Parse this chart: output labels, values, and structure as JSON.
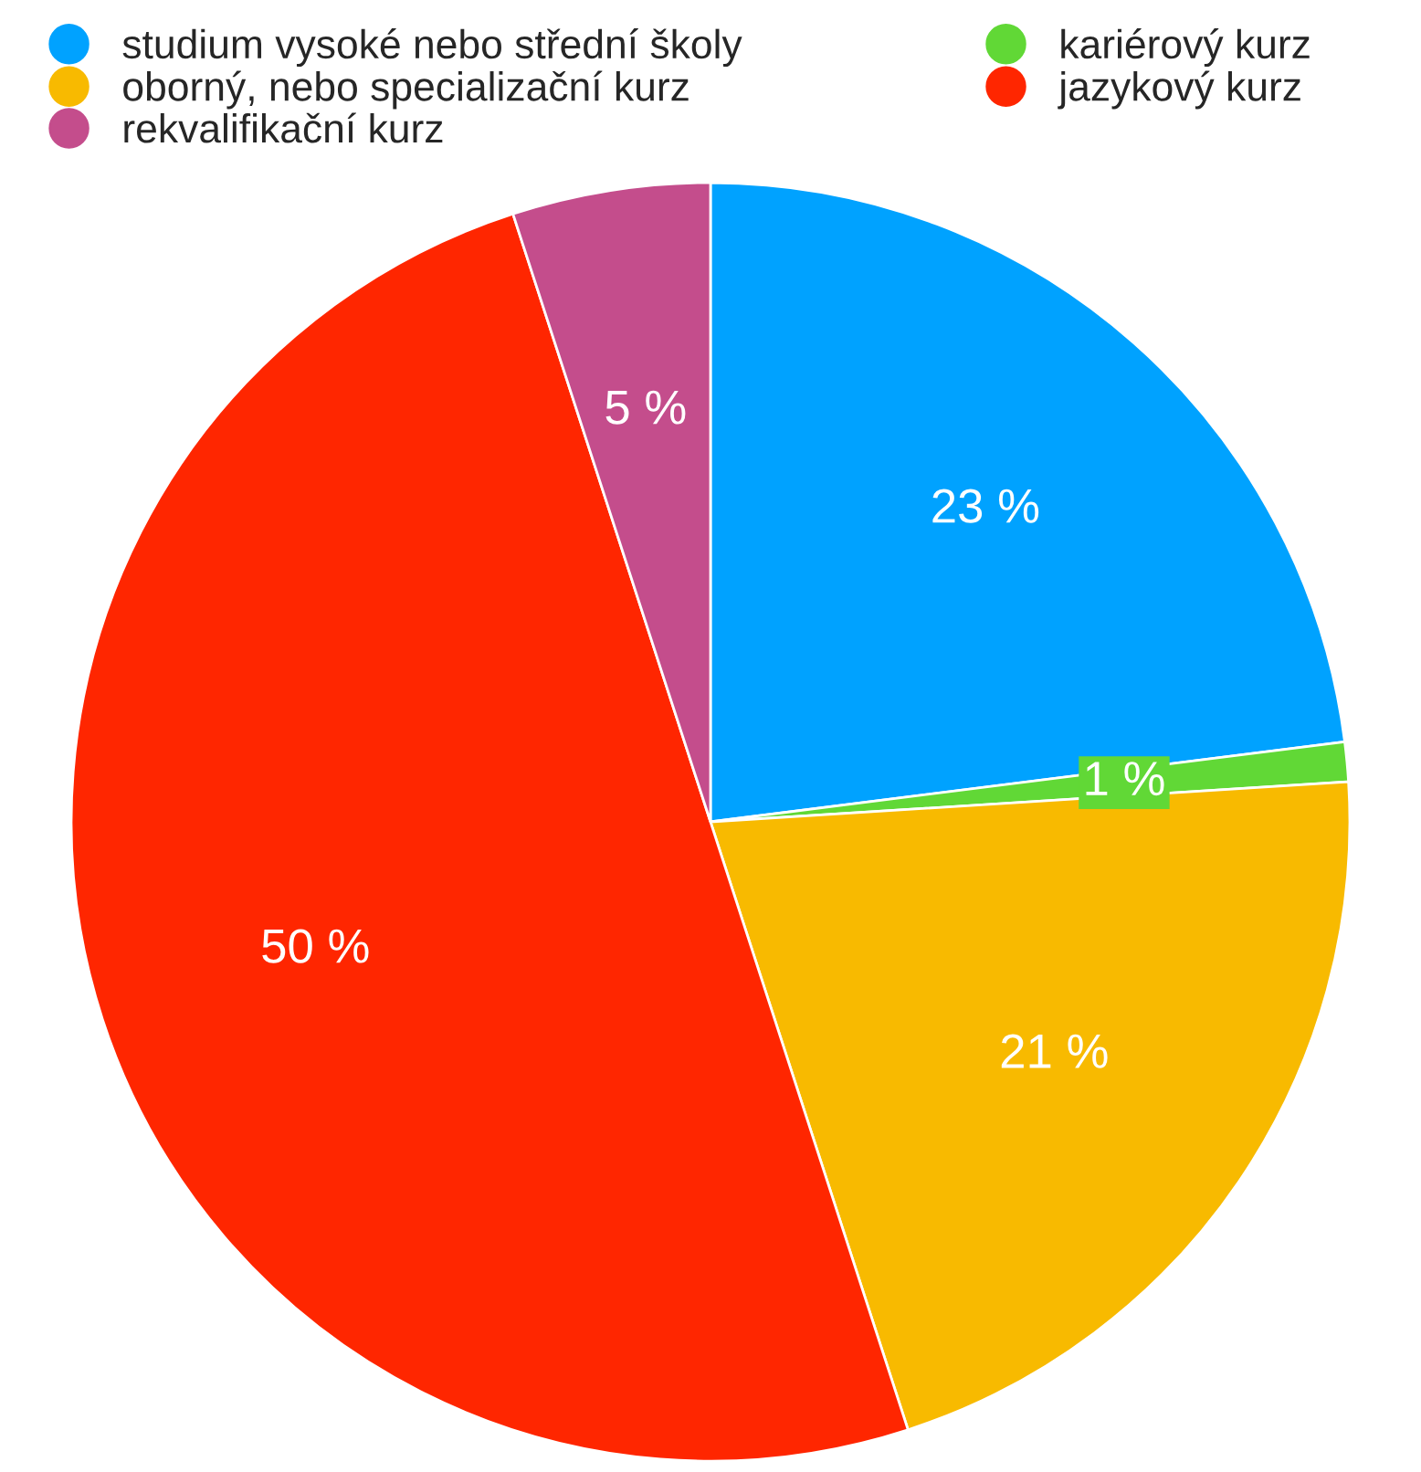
{
  "chart_data": {
    "type": "pie",
    "categories": [
      "studium vysoké nebo střední školy",
      "kariérový kurz",
      "oborný, nebo specializační kurz",
      "jazykový kurz",
      "rekvalifikační kurz"
    ],
    "values": [
      23,
      1,
      21,
      50,
      5
    ],
    "colors": [
      "#00a2ff",
      "#61d836",
      "#f8ba00",
      "#ff2600",
      "#c44d8c"
    ],
    "value_labels": [
      "23 %",
      "1 %",
      "21 %",
      "50 %",
      "5 %"
    ],
    "legend": "top"
  }
}
